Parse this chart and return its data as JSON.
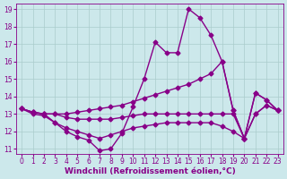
{
  "xlabel": "Windchill (Refroidissement éolien,°C)",
  "background_color": "#cce8eb",
  "grid_color": "#aacccc",
  "line_color": "#880088",
  "xlim": [
    -0.5,
    23.5
  ],
  "ylim": [
    10.7,
    19.3
  ],
  "yticks": [
    11,
    12,
    13,
    14,
    15,
    16,
    17,
    18,
    19
  ],
  "xticks": [
    0,
    1,
    2,
    3,
    4,
    5,
    6,
    7,
    8,
    9,
    10,
    11,
    12,
    13,
    14,
    15,
    16,
    17,
    18,
    19,
    20,
    21,
    22,
    23
  ],
  "lines": [
    {
      "x": [
        0,
        1,
        2,
        3,
        4,
        5,
        6,
        7,
        8,
        9,
        10,
        11,
        12,
        13,
        14,
        15,
        16,
        17,
        18,
        19,
        20,
        21,
        22,
        23
      ],
      "y": [
        13.3,
        13.1,
        13.0,
        12.5,
        12.0,
        11.7,
        11.5,
        10.9,
        11.0,
        11.9,
        13.4,
        15.0,
        17.1,
        16.5,
        16.5,
        19.0,
        18.5,
        17.5,
        16.0,
        13.2,
        11.6,
        14.2,
        13.8,
        13.2
      ]
    },
    {
      "x": [
        0,
        1,
        2,
        3,
        4,
        5,
        6,
        7,
        8,
        9,
        10,
        11,
        12,
        13,
        14,
        15,
        16,
        17,
        18,
        19,
        20,
        21,
        22,
        23
      ],
      "y": [
        13.3,
        13.1,
        13.0,
        13.0,
        13.0,
        13.1,
        13.2,
        13.3,
        13.4,
        13.5,
        13.7,
        13.9,
        14.1,
        14.3,
        14.5,
        14.7,
        15.0,
        15.3,
        16.0,
        13.2,
        11.6,
        14.2,
        13.8,
        13.2
      ]
    },
    {
      "x": [
        0,
        1,
        2,
        3,
        4,
        5,
        6,
        7,
        8,
        9,
        10,
        11,
        12,
        13,
        14,
        15,
        16,
        17,
        18,
        19,
        20,
        21,
        22,
        23
      ],
      "y": [
        13.3,
        13.1,
        13.0,
        13.0,
        12.8,
        12.7,
        12.7,
        12.7,
        12.7,
        12.8,
        12.9,
        13.0,
        13.0,
        13.0,
        13.0,
        13.0,
        13.0,
        13.0,
        13.0,
        13.0,
        11.6,
        13.0,
        13.5,
        13.2
      ]
    },
    {
      "x": [
        0,
        1,
        2,
        3,
        4,
        5,
        6,
        7,
        8,
        9,
        10,
        11,
        12,
        13,
        14,
        15,
        16,
        17,
        18,
        19,
        20,
        21,
        22,
        23
      ],
      "y": [
        13.3,
        13.0,
        12.9,
        12.5,
        12.2,
        12.0,
        11.8,
        11.6,
        11.8,
        12.0,
        12.2,
        12.3,
        12.4,
        12.5,
        12.5,
        12.5,
        12.5,
        12.5,
        12.3,
        12.0,
        11.6,
        13.0,
        13.5,
        13.2
      ]
    }
  ],
  "marker": "D",
  "marker_size": 2.5,
  "line_width": 1.0,
  "tick_fontsize": 5.5,
  "xlabel_fontsize": 6.5,
  "tick_color": "#880088",
  "xlabel_color": "#880088"
}
